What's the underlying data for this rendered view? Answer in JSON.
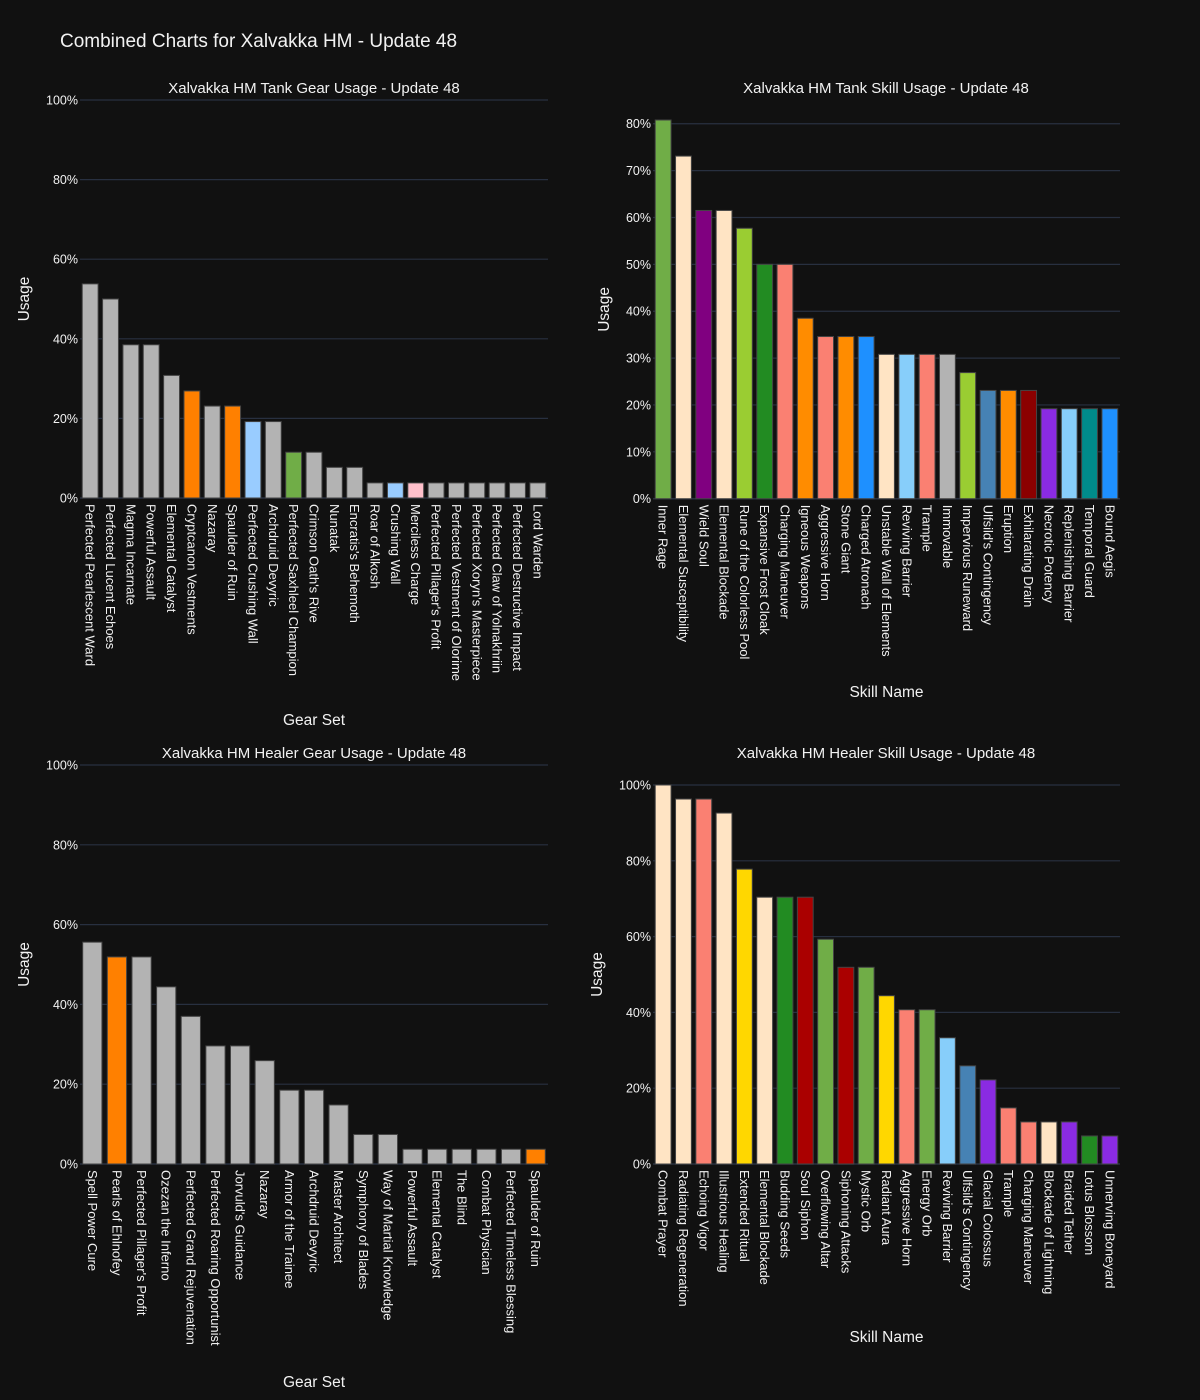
{
  "page_title": "Combined Charts for Xalvakka HM - Update 48",
  "chart_data": [
    {
      "id": "tank-gear",
      "type": "bar",
      "title": "Xalvakka HM Tank Gear Usage - Update 48",
      "xlabel": "Gear Set",
      "ylabel": "Usage",
      "ylim": [
        0,
        100
      ],
      "yticks": [
        0,
        20,
        40,
        60,
        80,
        100
      ],
      "ytick_labels": [
        "0%",
        "20%",
        "40%",
        "60%",
        "80%",
        "100%"
      ],
      "grid": true,
      "categories": [
        "Perfected Pearlescent Ward",
        "Perfected Lucent Echoes",
        "Magma Incarnate",
        "Powerful Assault",
        "Elemental Catalyst",
        "Cryptcanon Vestments",
        "Nazaray",
        "Spaulder of Ruin",
        "Perfected Crushing Wall",
        "Archdruid Devyric",
        "Perfected Saxhleel Champion",
        "Crimson Oath's Rive",
        "Nunatak",
        "Encratis's Behemoth",
        "Roar of Alkosh",
        "Crushing Wall",
        "Merciless Charge",
        "Perfected Pillager's Profit",
        "Perfected Vestment of Olorime",
        "Perfected Xoryn's Masterpiece",
        "Perfected Claw of Yolnakhriin",
        "Perfected Destructive Impact",
        "Lord Warden"
      ],
      "values": [
        53.8,
        50.0,
        38.5,
        38.5,
        30.8,
        26.9,
        23.1,
        23.1,
        19.2,
        19.2,
        11.5,
        11.5,
        7.7,
        7.7,
        3.8,
        3.8,
        3.8,
        3.8,
        3.8,
        3.8,
        3.8,
        3.8,
        3.8
      ],
      "colors": [
        "#b3b3b3",
        "#b3b3b3",
        "#b3b3b3",
        "#b3b3b3",
        "#b3b3b3",
        "#ff8000",
        "#b3b3b3",
        "#ff8000",
        "#99ccff",
        "#b3b3b3",
        "#70ad47",
        "#b3b3b3",
        "#b3b3b3",
        "#b3b3b3",
        "#b3b3b3",
        "#99ccff",
        "#ffc0cb",
        "#b3b3b3",
        "#b3b3b3",
        "#b3b3b3",
        "#b3b3b3",
        "#b3b3b3",
        "#b3b3b3"
      ]
    },
    {
      "id": "tank-skill",
      "type": "bar",
      "title": "Xalvakka HM Tank Skill Usage - Update 48",
      "xlabel": "Skill Name",
      "ylabel": "Usage",
      "ylim": [
        0,
        80.8
      ],
      "yticks": [
        0,
        10,
        20,
        30,
        40,
        50,
        60,
        70,
        80
      ],
      "ytick_labels": [
        "0%",
        "10%",
        "20%",
        "30%",
        "40%",
        "50%",
        "60%",
        "70%",
        "80%"
      ],
      "grid": true,
      "categories": [
        "Inner Rage",
        "Elemental Susceptibility",
        "Wield Soul",
        "Elemental Blockade",
        "Rune of the Colorless Pool",
        "Expansive Frost Cloak",
        "Charging Maneuver",
        "Igneous Weapons",
        "Aggressive Horn",
        "Stone Giant",
        "Charged Atronach",
        "Unstable Wall of Elements",
        "Reviving Barrier",
        "Trample",
        "Immovable",
        "Impervious Runeward",
        "Ulfsild's Contingency",
        "Eruption",
        "Exhilarating Drain",
        "Necrotic Potency",
        "Replenishing Barrier",
        "Temporal Guard",
        "Bound Aegis"
      ],
      "values": [
        80.8,
        73.1,
        61.5,
        61.5,
        57.7,
        50.0,
        50.0,
        38.5,
        34.6,
        34.6,
        34.6,
        30.8,
        30.8,
        30.8,
        30.8,
        26.9,
        23.1,
        23.1,
        23.1,
        19.2,
        19.2,
        19.2,
        19.2
      ],
      "colors": [
        "#70ad47",
        "#ffe4c4",
        "#800080",
        "#ffe4c4",
        "#9acd32",
        "#228b22",
        "#fa8072",
        "#ff8c00",
        "#fa8072",
        "#ff8c00",
        "#1e90ff",
        "#ffe4c4",
        "#87cefa",
        "#fa8072",
        "#b3b3b3",
        "#9acd32",
        "#4682b4",
        "#ff8c00",
        "#8b0000",
        "#8a2be2",
        "#87cefa",
        "#008b8b",
        "#1e90ff"
      ]
    },
    {
      "id": "healer-gear",
      "type": "bar",
      "title": "Xalvakka HM Healer Gear Usage - Update 48",
      "xlabel": "Gear Set",
      "ylabel": "Usage",
      "ylim": [
        0,
        100
      ],
      "yticks": [
        0,
        20,
        40,
        60,
        80,
        100
      ],
      "ytick_labels": [
        "0%",
        "20%",
        "40%",
        "60%",
        "80%",
        "100%"
      ],
      "grid": true,
      "categories": [
        "Spell Power Cure",
        "Pearls of Ehlnofey",
        "Perfected Pillager's Profit",
        "Ozezan the Inferno",
        "Perfected Grand Rejuvenation",
        "Perfected Roaring Opportunist",
        "Jorvuld's Guidance",
        "Nazaray",
        "Armor of the Trainee",
        "Archdruid Devyric",
        "Master Architect",
        "Symphony of Blades",
        "Way of Martial Knowledge",
        "Powerful Assault",
        "Elemental Catalyst",
        "The Blind",
        "Combat Physician",
        "Perfected Timeless Blessing",
        "Spaulder of Ruin"
      ],
      "values": [
        55.6,
        51.9,
        51.9,
        44.4,
        37.0,
        29.6,
        29.6,
        25.9,
        18.5,
        18.5,
        14.8,
        7.4,
        7.4,
        3.7,
        3.7,
        3.7,
        3.7,
        3.7,
        3.7
      ],
      "colors": [
        "#b3b3b3",
        "#ff8000",
        "#b3b3b3",
        "#b3b3b3",
        "#b3b3b3",
        "#b3b3b3",
        "#b3b3b3",
        "#b3b3b3",
        "#b3b3b3",
        "#b3b3b3",
        "#b3b3b3",
        "#b3b3b3",
        "#b3b3b3",
        "#b3b3b3",
        "#b3b3b3",
        "#b3b3b3",
        "#b3b3b3",
        "#b3b3b3",
        "#ff8000"
      ]
    },
    {
      "id": "healer-skill",
      "type": "bar",
      "title": "Xalvakka HM Healer Skill Usage - Update 48",
      "xlabel": "Skill Name",
      "ylabel": "Usage",
      "ylim": [
        0,
        100
      ],
      "yticks": [
        0,
        20,
        40,
        60,
        80,
        100
      ],
      "ytick_labels": [
        "0%",
        "20%",
        "40%",
        "60%",
        "80%",
        "100%"
      ],
      "grid": true,
      "categories": [
        "Combat Prayer",
        "Radiating Regeneration",
        "Echoing Vigor",
        "Illustrious Healing",
        "Extended Ritual",
        "Elemental Blockade",
        "Budding Seeds",
        "Soul Siphon",
        "Overflowing Altar",
        "Siphoning Attacks",
        "Mystic Orb",
        "Radiant Aura",
        "Aggressive Horn",
        "Energy Orb",
        "Reviving Barrier",
        "Ulfsild's Contingency",
        "Glacial Colossus",
        "Trample",
        "Charging Maneuver",
        "Blockade of Lightning",
        "Braided Tether",
        "Lotus Blossom",
        "Unnerving Boneyard"
      ],
      "values": [
        100.0,
        96.3,
        96.3,
        92.6,
        77.8,
        70.4,
        70.4,
        70.4,
        59.3,
        51.9,
        51.9,
        44.4,
        40.7,
        40.7,
        33.3,
        25.9,
        22.2,
        14.8,
        11.1,
        11.1,
        11.1,
        7.4,
        7.4
      ],
      "colors": [
        "#ffe4c4",
        "#ffe4c4",
        "#fa8072",
        "#ffe4c4",
        "#ffd700",
        "#ffe4c4",
        "#228b22",
        "#aa0000",
        "#70ad47",
        "#aa0000",
        "#70ad47",
        "#ffd700",
        "#fa8072",
        "#70ad47",
        "#87cefa",
        "#4682b4",
        "#8a2be2",
        "#fa8072",
        "#fa8072",
        "#ffe4c4",
        "#8a2be2",
        "#228b22",
        "#8a2be2"
      ]
    }
  ]
}
